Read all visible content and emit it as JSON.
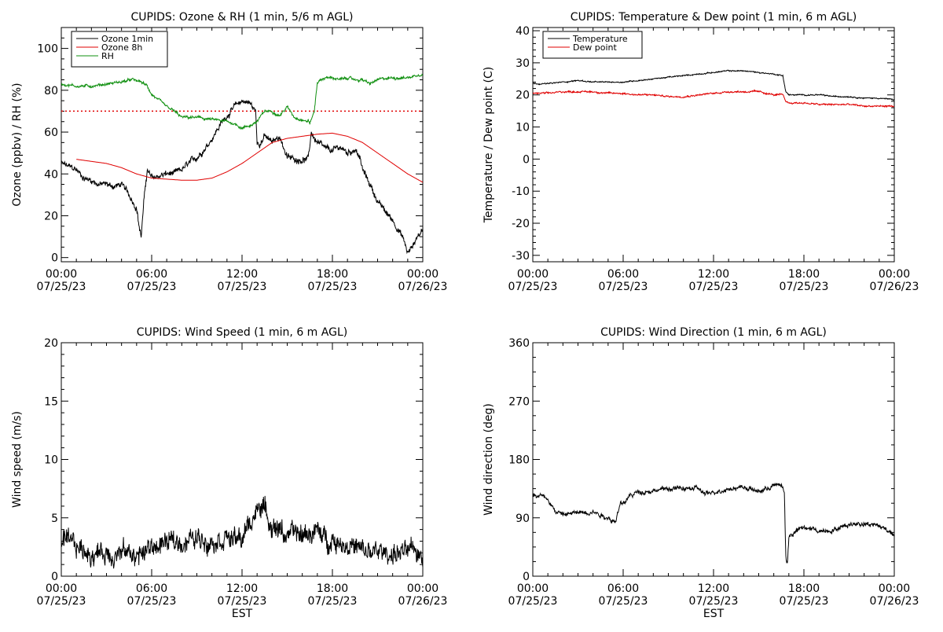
{
  "x_tick_labels": {
    "times": [
      "00:00",
      "06:00",
      "12:00",
      "18:00",
      "00:00"
    ],
    "dates": [
      "07/25/23",
      "07/25/23",
      "07/25/23",
      "07/25/23",
      "07/26/23"
    ]
  },
  "colors": {
    "black": "#000000",
    "red": "#e00000",
    "green": "#109010"
  },
  "chart_data": [
    {
      "type": "line",
      "title": "CUPIDS: Ozone & RH (1 min, 5/6 m AGL)",
      "xlabel": "",
      "ylabel": "Ozone (ppbv) / RH (%)",
      "xlim": [
        0,
        24
      ],
      "ylim": [
        -2,
        110
      ],
      "yticks": [
        0,
        20,
        40,
        60,
        80,
        100
      ],
      "yminor": 5,
      "legend": "top-left",
      "reference_line": {
        "y": 70,
        "color": "#e00000",
        "style": "dotted"
      },
      "series": [
        {
          "name": "Ozone 1min",
          "color": "#000000",
          "noise": 2,
          "x": [
            0,
            1,
            1.5,
            2,
            2.5,
            3,
            3.5,
            4,
            4.5,
            5,
            5.15,
            5.3,
            5.5,
            5.7,
            6,
            6.5,
            7,
            7.5,
            8,
            8.5,
            9,
            9.5,
            10,
            10.5,
            11,
            11.5,
            12,
            12.5,
            12.9,
            13,
            13.2,
            13.5,
            14,
            14.5,
            15,
            15.5,
            16,
            16.4,
            16.6,
            16.8,
            17,
            17.5,
            18,
            18.5,
            19,
            19.5,
            19.8,
            20,
            20.5,
            21,
            21.5,
            22,
            22.5,
            22.8,
            23,
            23.3,
            23.6,
            24
          ],
          "y": [
            45,
            42,
            38,
            37,
            35,
            35,
            34,
            35,
            30,
            24,
            16,
            10,
            28,
            42,
            38,
            39,
            40,
            40,
            42,
            45,
            48,
            52,
            57,
            63,
            68,
            72,
            75,
            74,
            70,
            55,
            55,
            58,
            55,
            58,
            48,
            47,
            47,
            47,
            60,
            57,
            55,
            52,
            51,
            53,
            50,
            52,
            48,
            42,
            35,
            27,
            22,
            18,
            12,
            7,
            2,
            5,
            10,
            13
          ]
        },
        {
          "name": "Ozone 8h",
          "color": "#e00000",
          "noise": 0,
          "x": [
            1,
            2,
            3,
            4,
            5,
            6,
            7,
            8,
            9,
            10,
            11,
            12,
            13,
            14,
            15,
            16,
            17,
            18,
            19,
            20,
            21,
            22,
            23,
            24
          ],
          "y": [
            47,
            46,
            45,
            43,
            40,
            38,
            37.5,
            37,
            37,
            38,
            41,
            45,
            50,
            55,
            57,
            58,
            59,
            59.5,
            58,
            55,
            50,
            45,
            40,
            36
          ]
        },
        {
          "name": "RH",
          "color": "#109010",
          "noise": 0.9,
          "x": [
            0,
            1,
            2,
            3,
            4,
            4.7,
            5.3,
            5.7,
            6,
            6.5,
            7,
            7.5,
            8,
            9,
            10,
            11,
            11.5,
            12,
            12.5,
            13,
            13.5,
            14,
            14.5,
            15,
            15.5,
            16,
            16.3,
            16.4,
            16.5,
            16.8,
            17,
            17.5,
            18,
            18.5,
            19,
            19.5,
            20,
            20.5,
            21,
            22,
            23,
            24
          ],
          "y": [
            83,
            82,
            82,
            83,
            84,
            85,
            84,
            82,
            78,
            75,
            72,
            70,
            67,
            67,
            66,
            65,
            64,
            62,
            63,
            65,
            70,
            70,
            68,
            72,
            67,
            66,
            65,
            66,
            64,
            70,
            84,
            86,
            86,
            85,
            86,
            85,
            85,
            83,
            85,
            86,
            86,
            88
          ]
        }
      ]
    },
    {
      "type": "line",
      "title": "CUPIDS: Temperature & Dew point (1 min, 6 m AGL)",
      "xlabel": "",
      "ylabel": "Temperature / Dew point (C)",
      "xlim": [
        0,
        24
      ],
      "ylim": [
        -32,
        41
      ],
      "yticks": [
        -30,
        -20,
        -10,
        0,
        10,
        20,
        30,
        40
      ],
      "yminor": 2,
      "legend": "top-left",
      "series": [
        {
          "name": "Temperature",
          "color": "#000000",
          "noise": 0.25,
          "x": [
            0,
            1,
            2,
            3,
            4,
            5,
            6,
            7,
            8,
            9,
            10,
            11,
            12,
            13,
            14,
            15,
            16,
            16.6,
            16.8,
            17,
            18,
            19,
            20,
            21,
            22,
            23,
            24
          ],
          "y": [
            23.5,
            23.5,
            24,
            24.5,
            24,
            24,
            24,
            24.5,
            25,
            25.5,
            26,
            26.5,
            27,
            27.5,
            27.5,
            27,
            26.5,
            26,
            21,
            20,
            20,
            20,
            19.5,
            19.5,
            19,
            19,
            18.5
          ]
        },
        {
          "name": "Dew point",
          "color": "#e00000",
          "noise": 0.35,
          "x": [
            0,
            1,
            2,
            3,
            4,
            5,
            6,
            7,
            8,
            9,
            10,
            11,
            12,
            13,
            14,
            15,
            16,
            16.6,
            16.8,
            17,
            18,
            19,
            20,
            21,
            22,
            23,
            24
          ],
          "y": [
            20.5,
            20.5,
            21,
            21,
            21,
            20.5,
            20.5,
            20,
            20,
            19.5,
            19.5,
            20,
            20.5,
            21,
            21,
            21,
            20,
            20,
            18,
            17.5,
            17.5,
            17,
            17,
            17,
            16.5,
            16.5,
            16.5
          ]
        }
      ]
    },
    {
      "type": "line",
      "title": "CUPIDS: Wind Speed (1 min, 6 m AGL)",
      "xlabel": "EST",
      "ylabel": "Wind speed (m/s)",
      "xlim": [
        0,
        24
      ],
      "ylim": [
        0,
        20
      ],
      "yticks": [
        0,
        5,
        10,
        15,
        20
      ],
      "yminor": 1,
      "legend": "",
      "series": [
        {
          "name": "",
          "color": "#000000",
          "noise": 1.2,
          "x": [
            0,
            1,
            1.5,
            2,
            3,
            4,
            4.5,
            5,
            5.5,
            6,
            7,
            8,
            9,
            10,
            11,
            11.5,
            12,
            12.5,
            13,
            13.3,
            13.5,
            14,
            14.5,
            15,
            15.5,
            16,
            16.5,
            17,
            17.5,
            18,
            18.5,
            19,
            19.5,
            20,
            21,
            22,
            23,
            24
          ],
          "y": [
            2.8,
            2.5,
            2.2,
            2,
            2,
            2,
            2,
            1.8,
            2,
            2.5,
            2.8,
            3,
            3.2,
            3.2,
            3.5,
            3,
            3.2,
            4.5,
            5.5,
            6.5,
            5.5,
            4.5,
            4,
            3.5,
            3.5,
            3.5,
            3.8,
            3.8,
            3.2,
            3.2,
            3,
            2.8,
            2.5,
            2,
            2,
            2,
            2,
            2
          ]
        }
      ]
    },
    {
      "type": "line",
      "title": "CUPIDS: Wind Direction (1 min, 6 m AGL)",
      "xlabel": "EST",
      "ylabel": "Wind direction (deg)",
      "xlim": [
        0,
        24
      ],
      "ylim": [
        0,
        360
      ],
      "yticks": [
        0,
        90,
        180,
        270,
        360
      ],
      "yminor": 22.5,
      "legend": "",
      "series": [
        {
          "name": "",
          "color": "#000000",
          "noise": 5,
          "x": [
            0,
            0.5,
            1,
            1.5,
            2,
            3,
            4,
            4.5,
            5,
            5.5,
            5.8,
            6,
            6.5,
            7,
            8,
            9,
            10,
            11,
            11.5,
            12,
            13,
            14,
            15,
            15.5,
            16,
            16.5,
            16.7,
            16.8,
            16.9,
            17,
            17.5,
            18,
            19,
            20,
            21,
            22,
            23,
            24
          ],
          "y": [
            125,
            125,
            120,
            100,
            95,
            98,
            100,
            95,
            90,
            85,
            110,
            112,
            125,
            130,
            132,
            135,
            135,
            135,
            125,
            130,
            135,
            138,
            130,
            135,
            140,
            140,
            130,
            30,
            20,
            60,
            70,
            75,
            70,
            72,
            80,
            82,
            78,
            65
          ]
        }
      ]
    }
  ]
}
